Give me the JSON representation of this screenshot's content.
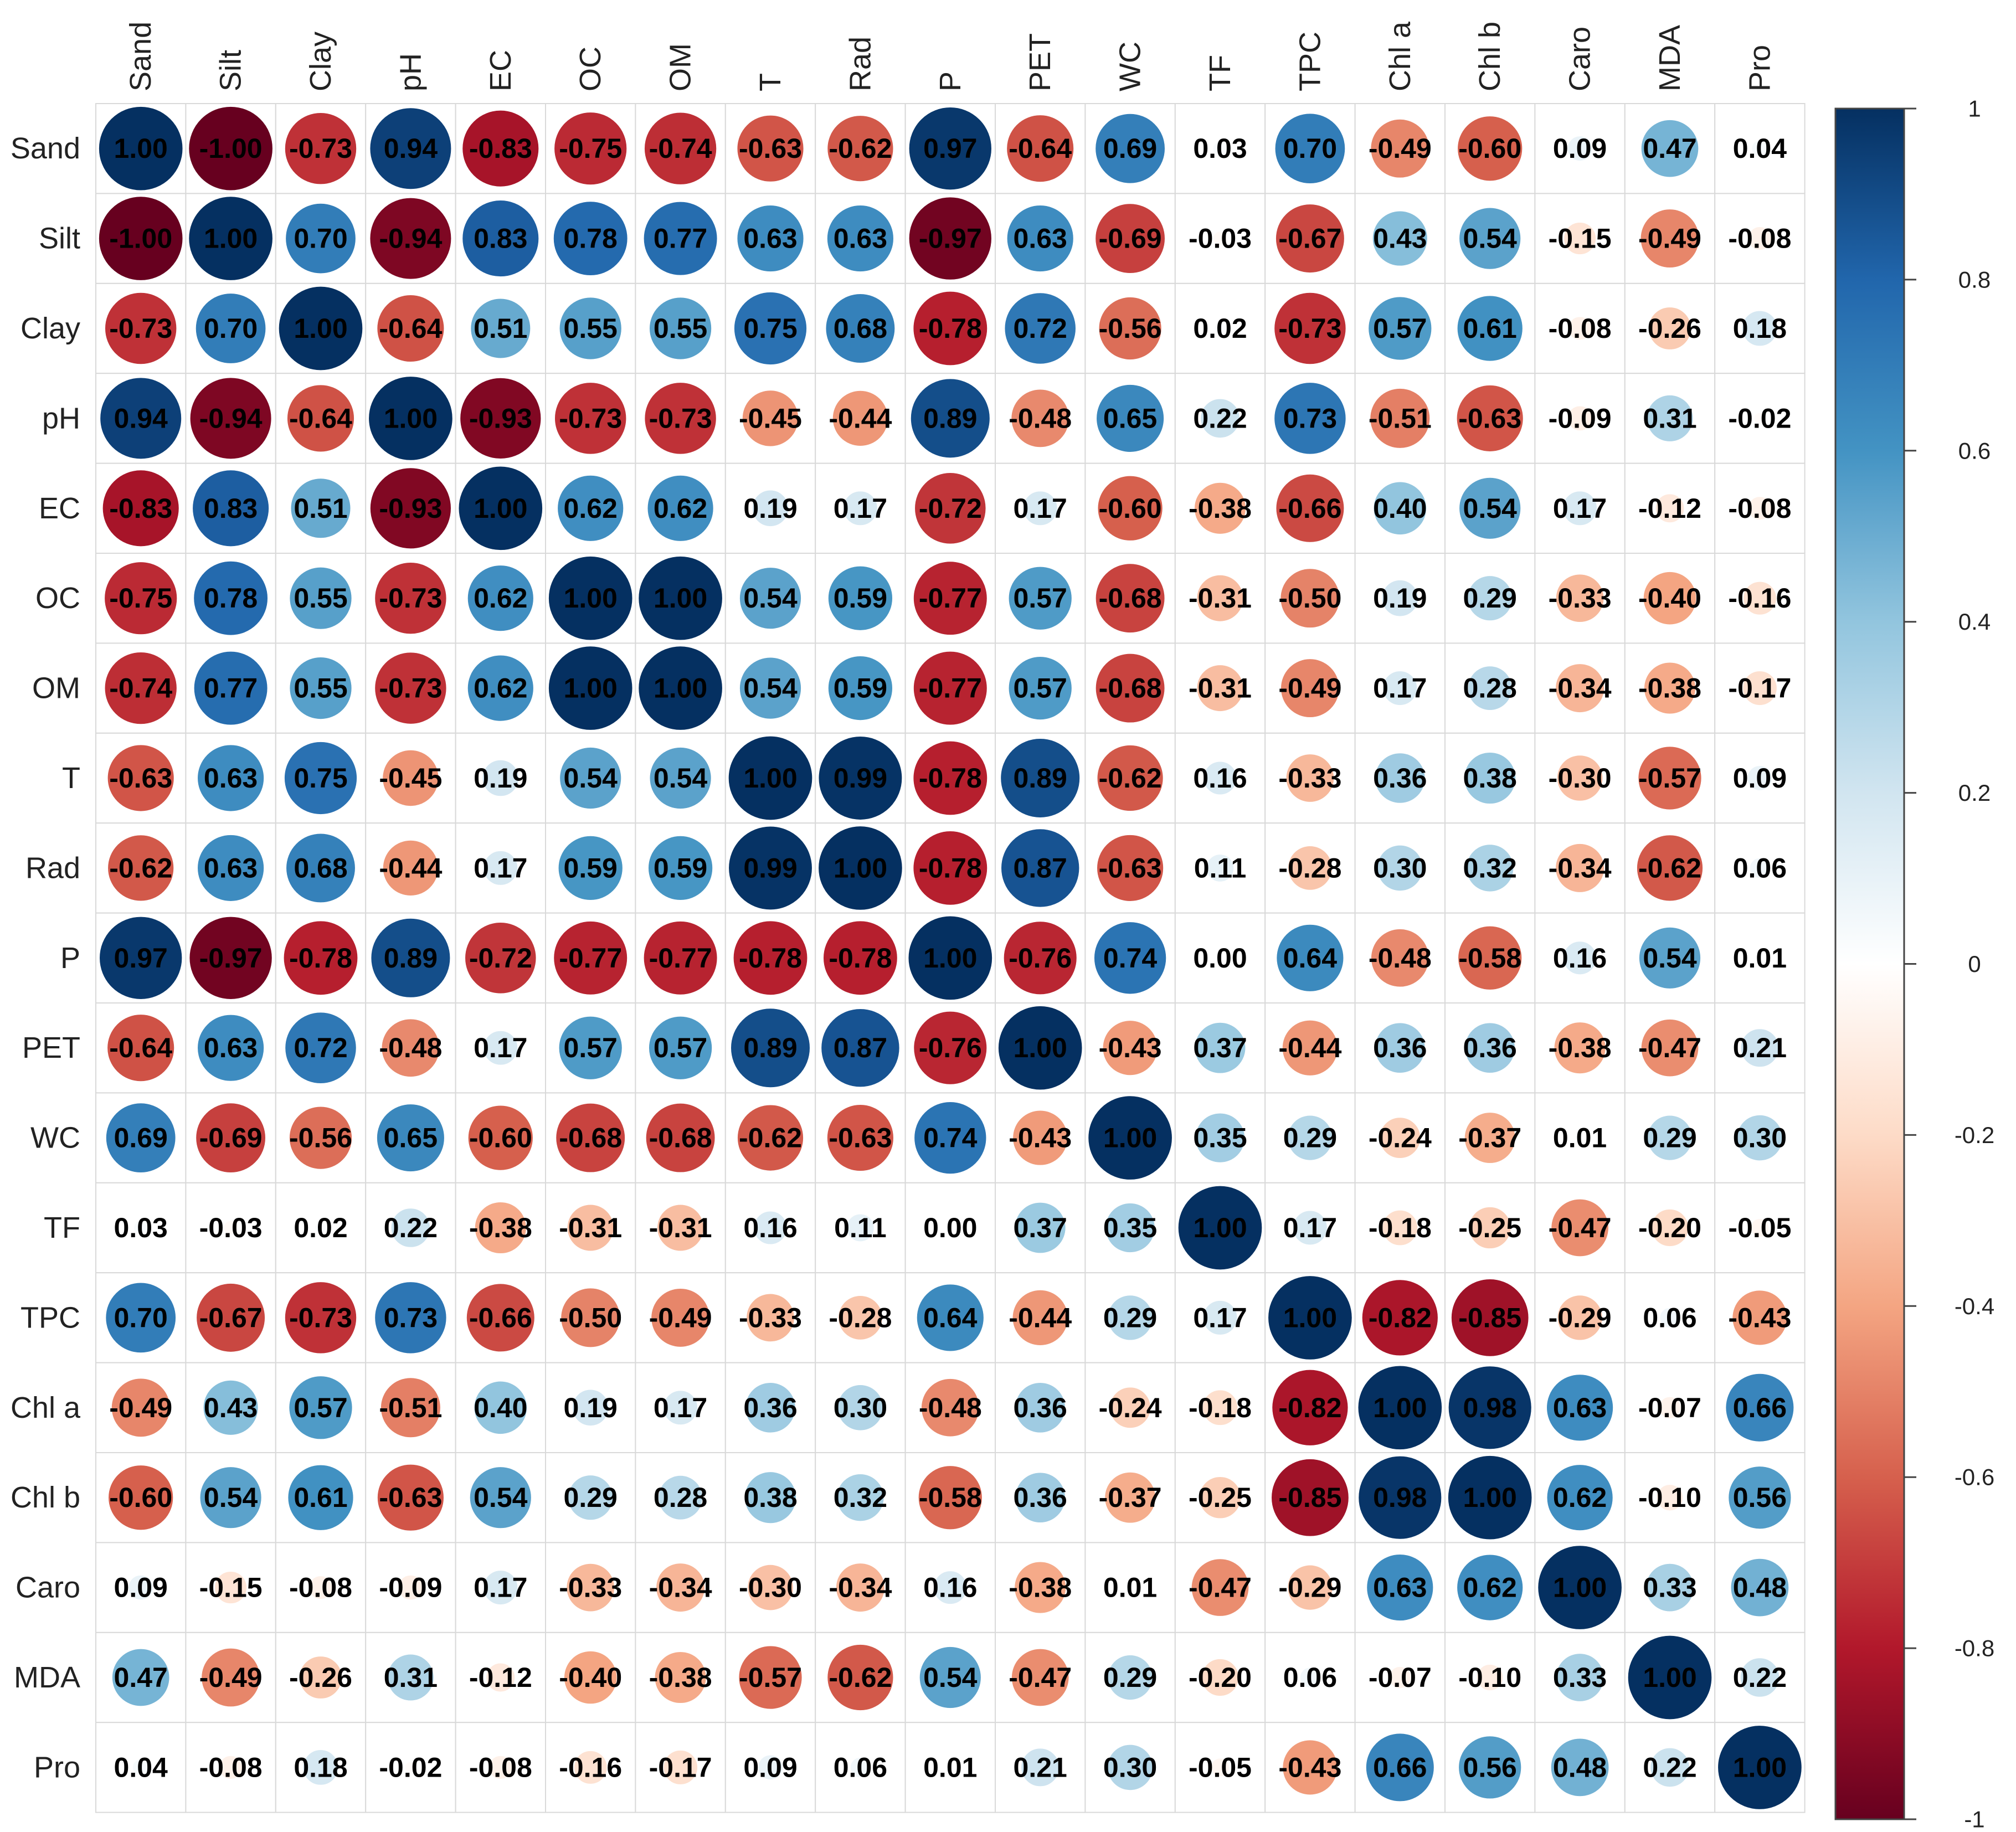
{
  "chart_data": {
    "type": "heatmap",
    "style": "correlation circle matrix",
    "variables": [
      "Sand",
      "Silt",
      "Clay",
      "pH",
      "EC",
      "OC",
      "OM",
      "T",
      "Rad",
      "P",
      "PET",
      "WC",
      "TF",
      "TPC",
      "Chl a",
      "Chl b",
      "Caro",
      "MDA",
      "Pro"
    ],
    "matrix": [
      [
        1.0,
        -1.0,
        -0.73,
        0.94,
        -0.83,
        -0.75,
        -0.74,
        -0.63,
        -0.62,
        0.97,
        -0.64,
        0.69,
        0.03,
        0.7,
        -0.49,
        -0.6,
        0.09,
        0.47,
        0.04
      ],
      [
        -1.0,
        1.0,
        0.7,
        -0.94,
        0.83,
        0.78,
        0.77,
        0.63,
        0.63,
        -0.97,
        0.63,
        -0.69,
        -0.03,
        -0.67,
        0.43,
        0.54,
        -0.15,
        -0.49,
        -0.08
      ],
      [
        -0.73,
        0.7,
        1.0,
        -0.64,
        0.51,
        0.55,
        0.55,
        0.75,
        0.68,
        -0.78,
        0.72,
        -0.56,
        0.02,
        -0.73,
        0.57,
        0.61,
        -0.08,
        -0.26,
        0.18
      ],
      [
        0.94,
        -0.94,
        -0.64,
        1.0,
        -0.93,
        -0.73,
        -0.73,
        -0.45,
        -0.44,
        0.89,
        -0.48,
        0.65,
        0.22,
        0.73,
        -0.51,
        -0.63,
        -0.09,
        0.31,
        -0.02
      ],
      [
        -0.83,
        0.83,
        0.51,
        -0.93,
        1.0,
        0.62,
        0.62,
        0.19,
        0.17,
        -0.72,
        0.17,
        -0.6,
        -0.38,
        -0.66,
        0.4,
        0.54,
        0.17,
        -0.12,
        -0.08
      ],
      [
        -0.75,
        0.78,
        0.55,
        -0.73,
        0.62,
        1.0,
        1.0,
        0.54,
        0.59,
        -0.77,
        0.57,
        -0.68,
        -0.31,
        -0.5,
        0.19,
        0.29,
        -0.33,
        -0.4,
        -0.16
      ],
      [
        -0.74,
        0.77,
        0.55,
        -0.73,
        0.62,
        1.0,
        1.0,
        0.54,
        0.59,
        -0.77,
        0.57,
        -0.68,
        -0.31,
        -0.49,
        0.17,
        0.28,
        -0.34,
        -0.38,
        -0.17
      ],
      [
        -0.63,
        0.63,
        0.75,
        -0.45,
        0.19,
        0.54,
        0.54,
        1.0,
        0.99,
        -0.78,
        0.89,
        -0.62,
        0.16,
        -0.33,
        0.36,
        0.38,
        -0.3,
        -0.57,
        0.09
      ],
      [
        -0.62,
        0.63,
        0.68,
        -0.44,
        0.17,
        0.59,
        0.59,
        0.99,
        1.0,
        -0.78,
        0.87,
        -0.63,
        0.11,
        -0.28,
        0.3,
        0.32,
        -0.34,
        -0.62,
        0.06
      ],
      [
        0.97,
        -0.97,
        -0.78,
        0.89,
        -0.72,
        -0.77,
        -0.77,
        -0.78,
        -0.78,
        1.0,
        -0.76,
        0.74,
        0.0,
        0.64,
        -0.48,
        -0.58,
        0.16,
        0.54,
        0.01
      ],
      [
        -0.64,
        0.63,
        0.72,
        -0.48,
        0.17,
        0.57,
        0.57,
        0.89,
        0.87,
        -0.76,
        1.0,
        -0.43,
        0.37,
        -0.44,
        0.36,
        0.36,
        -0.38,
        -0.47,
        0.21
      ],
      [
        0.69,
        -0.69,
        -0.56,
        0.65,
        -0.6,
        -0.68,
        -0.68,
        -0.62,
        -0.63,
        0.74,
        -0.43,
        1.0,
        0.35,
        0.29,
        -0.24,
        -0.37,
        0.01,
        0.29,
        0.3
      ],
      [
        0.03,
        -0.03,
        0.02,
        0.22,
        -0.38,
        -0.31,
        -0.31,
        0.16,
        0.11,
        0.0,
        0.37,
        0.35,
        1.0,
        0.17,
        -0.18,
        -0.25,
        -0.47,
        -0.2,
        -0.05
      ],
      [
        0.7,
        -0.67,
        -0.73,
        0.73,
        -0.66,
        -0.5,
        -0.49,
        -0.33,
        -0.28,
        0.64,
        -0.44,
        0.29,
        0.17,
        1.0,
        -0.82,
        -0.85,
        -0.29,
        0.06,
        -0.43
      ],
      [
        -0.49,
        0.43,
        0.57,
        -0.51,
        0.4,
        0.19,
        0.17,
        0.36,
        0.3,
        -0.48,
        0.36,
        -0.24,
        -0.18,
        -0.82,
        1.0,
        0.98,
        0.63,
        -0.07,
        0.66
      ],
      [
        -0.6,
        0.54,
        0.61,
        -0.63,
        0.54,
        0.29,
        0.28,
        0.38,
        0.32,
        -0.58,
        0.36,
        -0.37,
        -0.25,
        -0.85,
        0.98,
        1.0,
        0.62,
        -0.1,
        0.56
      ],
      [
        0.09,
        -0.15,
        -0.08,
        -0.09,
        0.17,
        -0.33,
        -0.34,
        -0.3,
        -0.34,
        0.16,
        -0.38,
        0.01,
        -0.47,
        -0.29,
        0.63,
        0.62,
        1.0,
        0.33,
        0.48
      ],
      [
        0.47,
        -0.49,
        -0.26,
        0.31,
        -0.12,
        -0.4,
        -0.38,
        -0.57,
        -0.62,
        0.54,
        -0.47,
        0.29,
        -0.2,
        0.06,
        -0.07,
        -0.1,
        0.33,
        1.0,
        0.22
      ],
      [
        0.04,
        -0.08,
        0.18,
        -0.02,
        -0.08,
        -0.16,
        -0.17,
        0.09,
        0.06,
        0.01,
        0.21,
        0.3,
        -0.05,
        -0.43,
        0.66,
        0.56,
        0.48,
        0.22,
        1.0
      ]
    ],
    "colorbar": {
      "range": [
        -1,
        1
      ],
      "ticks": [
        1,
        0.8,
        0.6,
        0.4,
        0.2,
        0,
        -0.2,
        -0.4,
        -0.6,
        -0.8,
        -1
      ],
      "colors": [
        "#67001F",
        "#B2182B",
        "#D6604D",
        "#F4A582",
        "#FDDBC7",
        "#FFFFFF",
        "#D1E5F0",
        "#92C5DE",
        "#4393C3",
        "#2166AC",
        "#053061"
      ]
    },
    "title": "",
    "xlabel": "",
    "ylabel": ""
  }
}
